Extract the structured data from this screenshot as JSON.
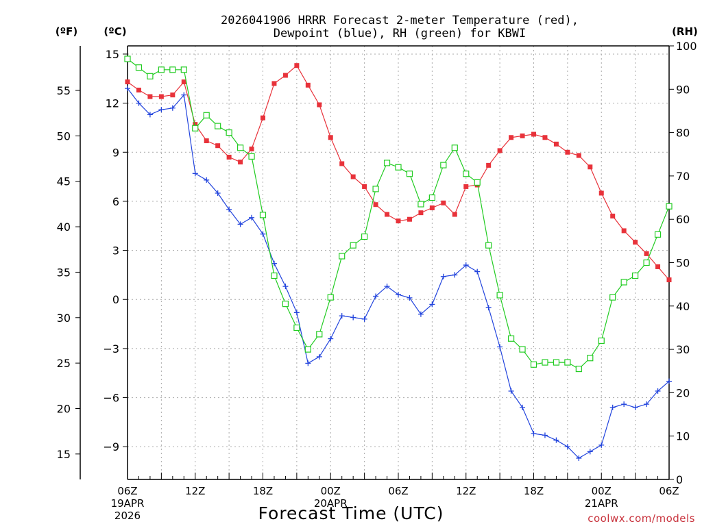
{
  "chart_data": {
    "type": "line",
    "title_line1": "2026041906 HRRR Forecast 2-meter Temperature (red),",
    "title_line2": "Dewpoint (blue), RH (green) for KBWI",
    "xlabel": "Forecast Time (UTC)",
    "credit": "coolwx.com/models",
    "units": {
      "fahrenheit": "(ºF)",
      "celsius": "(ºC)",
      "rh": "(RH)"
    },
    "x_hours_range": [
      0,
      48
    ],
    "celsius_range": [
      -11,
      15.5
    ],
    "fahrenheit_ticks": [
      "15",
      "20",
      "25",
      "30",
      "35",
      "40",
      "45",
      "50",
      "55"
    ],
    "celsius_ticks": [
      "-9",
      "-6",
      "-3",
      "0",
      "3",
      "6",
      "9",
      "12",
      "15"
    ],
    "rh_range": [
      0,
      100
    ],
    "rh_ticks": [
      "0",
      "10",
      "20",
      "30",
      "40",
      "50",
      "60",
      "70",
      "80",
      "90",
      "100"
    ],
    "x_ticks": [
      {
        "hour": 0,
        "label": "06Z",
        "sub1": "19APR",
        "sub2": "2026"
      },
      {
        "hour": 6,
        "label": "12Z"
      },
      {
        "hour": 12,
        "label": "18Z"
      },
      {
        "hour": 18,
        "label": "00Z",
        "sub1": "20APR"
      },
      {
        "hour": 24,
        "label": "06Z"
      },
      {
        "hour": 30,
        "label": "12Z"
      },
      {
        "hour": 36,
        "label": "18Z"
      },
      {
        "hour": 42,
        "label": "00Z",
        "sub1": "21APR"
      },
      {
        "hour": 48,
        "label": "06Z"
      }
    ],
    "series": [
      {
        "name": "2-meter Temperature",
        "unit": "C",
        "color": "#e8323a",
        "marker": "filled-square",
        "values": [
          13.3,
          12.8,
          12.4,
          12.4,
          12.5,
          13.3,
          10.7,
          9.7,
          9.4,
          8.7,
          8.4,
          9.2,
          11.1,
          13.2,
          13.7,
          14.3,
          13.1,
          11.9,
          9.9,
          8.3,
          7.5,
          6.9,
          5.8,
          5.2,
          4.8,
          4.9,
          5.3,
          5.6,
          5.9,
          5.2,
          6.9,
          7.0,
          8.2,
          9.1,
          9.9,
          10.0,
          10.1,
          9.9,
          9.5,
          9.0,
          8.8,
          8.1,
          6.5,
          5.1,
          4.2,
          3.5,
          2.8,
          2.0,
          1.2
        ]
      },
      {
        "name": "Dewpoint",
        "unit": "C",
        "color": "#2244dd",
        "marker": "plus",
        "values": [
          12.9,
          12.0,
          11.3,
          11.6,
          11.7,
          12.5,
          7.7,
          7.3,
          6.5,
          5.5,
          4.6,
          5.0,
          4.0,
          2.2,
          0.8,
          -0.8,
          -3.9,
          -3.5,
          -2.4,
          -1.0,
          -1.1,
          -1.2,
          0.2,
          0.8,
          0.3,
          0.1,
          -0.9,
          -0.3,
          1.4,
          1.5,
          2.1,
          1.7,
          -0.5,
          -2.9,
          -5.6,
          -6.6,
          -8.2,
          -8.3,
          -8.6,
          -9.0,
          -9.7,
          -9.3,
          -8.9,
          -6.6,
          -6.4,
          -6.6,
          -6.4,
          -5.6,
          -5.0
        ]
      },
      {
        "name": "RH",
        "unit": "%",
        "color": "#22cc22",
        "marker": "open-square",
        "values": [
          97,
          95,
          93,
          94.5,
          94.5,
          94.5,
          81,
          84,
          81.5,
          80,
          76.5,
          74.5,
          61,
          47,
          40.5,
          35,
          30,
          33.5,
          42,
          51.5,
          54,
          56,
          67,
          73,
          72,
          70.5,
          63.5,
          65,
          72.5,
          76.5,
          70.5,
          68.5,
          54,
          42.5,
          32.5,
          30,
          26.5,
          27,
          27,
          27,
          25.5,
          28,
          32,
          42,
          45.5,
          47,
          50,
          56.5,
          63
        ]
      }
    ]
  }
}
